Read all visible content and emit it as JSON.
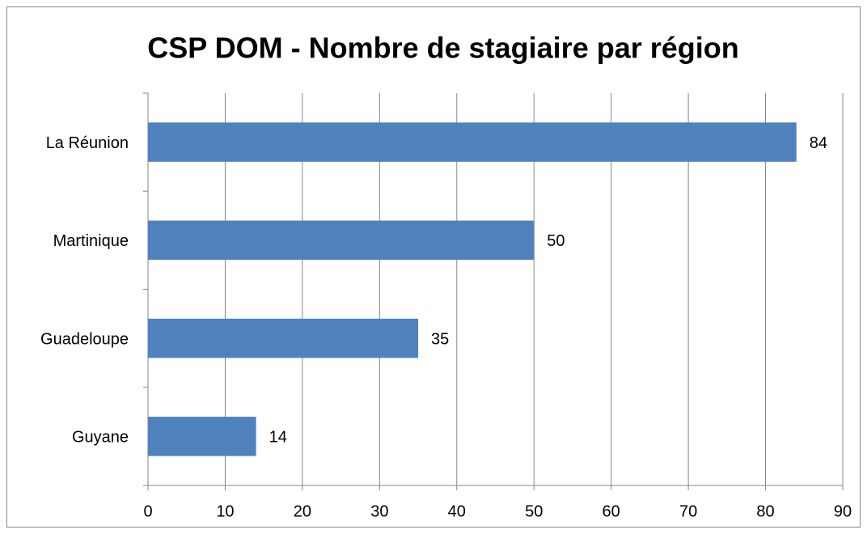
{
  "chart_data": {
    "type": "hbar",
    "title": "CSP DOM - Nombre de stagiaire par région",
    "categories": [
      "La Réunion",
      "Martinique",
      "Guadeloupe",
      "Guyane"
    ],
    "values": [
      84,
      50,
      35,
      14
    ],
    "color": "#4f81bd",
    "xlim": [
      0,
      90
    ],
    "xticks": [
      0,
      10,
      20,
      30,
      40,
      50,
      60,
      70,
      80,
      90
    ],
    "grid": true
  }
}
